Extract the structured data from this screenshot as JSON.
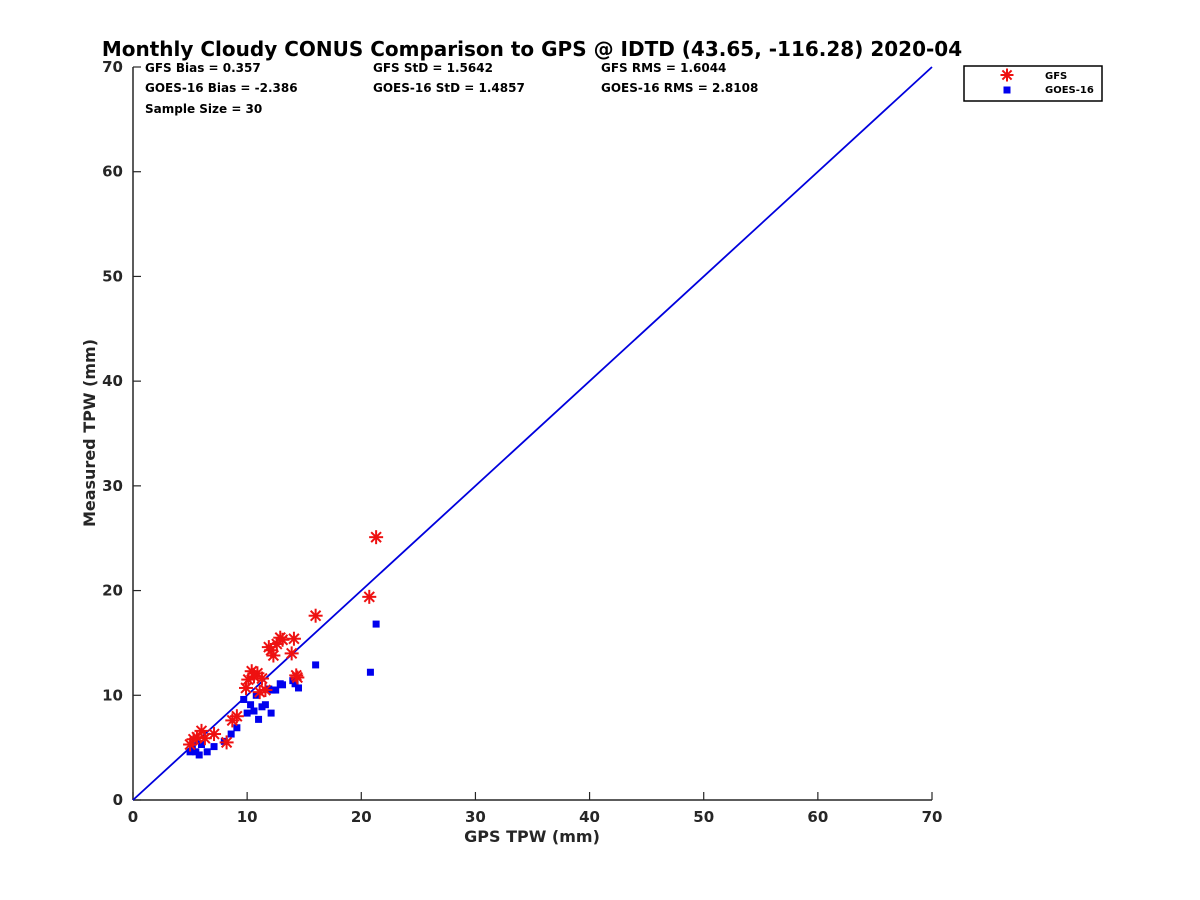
{
  "chart_data": {
    "type": "scatter",
    "title": "Monthly Cloudy CONUS Comparison to GPS @ IDTD (43.65, -116.28) 2020-04",
    "xlabel": "GPS TPW (mm)",
    "ylabel": "Measured TPW (mm)",
    "xlim": [
      0,
      70
    ],
    "ylim": [
      0,
      70
    ],
    "xticks": [
      "0",
      "10",
      "20",
      "30",
      "40",
      "50",
      "60",
      "70"
    ],
    "yticks": [
      "0",
      "10",
      "20",
      "30",
      "40",
      "50",
      "60",
      "70"
    ],
    "grid": false,
    "legend_position": "outside-top-right",
    "stats": [
      [
        "GFS Bias = 0.357",
        "GFS StD = 1.5642",
        "GFS RMS = 1.6044"
      ],
      [
        "GOES-16 Bias = -2.386",
        "GOES-16 StD = 1.4857",
        "GOES-16 RMS = 2.8108"
      ],
      [
        "Sample Size = 30",
        "",
        ""
      ]
    ],
    "reference_line": {
      "x": [
        0,
        70
      ],
      "y": [
        0,
        70
      ],
      "color": "#0000dd"
    },
    "series": [
      {
        "name": "GFS",
        "marker": "asterisk",
        "color": "#ee1111",
        "x": [
          5.0,
          5.3,
          5.6,
          6.0,
          6.3,
          7.1,
          8.2,
          8.7,
          9.1,
          9.9,
          10.1,
          10.4,
          10.6,
          10.9,
          11.1,
          11.3,
          11.6,
          11.9,
          12.1,
          12.3,
          12.6,
          12.9,
          13.1,
          13.9,
          14.1,
          14.3,
          14.4,
          16.0,
          20.7,
          21.3
        ],
        "y": [
          5.3,
          5.8,
          6.0,
          6.6,
          5.9,
          6.3,
          5.5,
          7.6,
          8.0,
          10.7,
          11.5,
          12.3,
          11.8,
          12.1,
          10.3,
          11.6,
          10.5,
          14.6,
          14.3,
          13.8,
          14.9,
          15.5,
          15.3,
          14.0,
          15.4,
          11.9,
          11.7,
          17.6,
          19.4,
          25.1
        ]
      },
      {
        "name": "GOES-16",
        "marker": "square",
        "color": "#0000ee",
        "x": [
          5.0,
          5.2,
          5.5,
          5.8,
          6.0,
          6.5,
          7.1,
          8.0,
          8.6,
          9.1,
          9.7,
          10.0,
          10.3,
          10.6,
          10.8,
          11.0,
          11.3,
          11.6,
          11.9,
          12.1,
          12.2,
          12.5,
          12.9,
          13.1,
          14.0,
          14.2,
          14.5,
          16.0,
          20.8,
          21.3
        ],
        "y": [
          4.6,
          4.9,
          4.6,
          4.3,
          5.3,
          4.6,
          5.1,
          5.6,
          6.3,
          6.9,
          9.6,
          8.3,
          9.1,
          8.5,
          10.0,
          7.7,
          8.9,
          9.1,
          10.6,
          8.3,
          10.5,
          10.5,
          11.1,
          11.0,
          11.4,
          11.1,
          10.7,
          12.9,
          12.2,
          16.8
        ]
      }
    ]
  }
}
